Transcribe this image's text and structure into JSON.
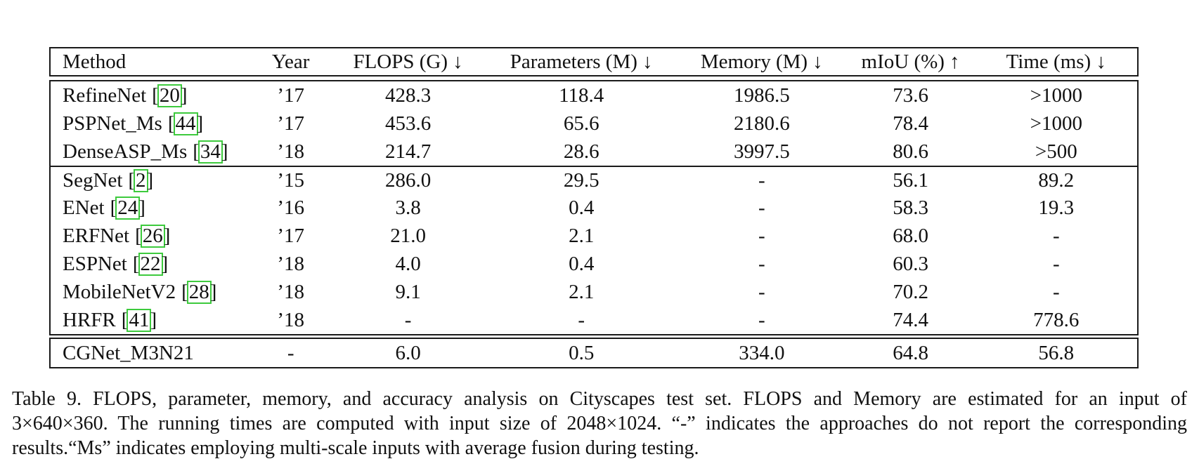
{
  "table": {
    "bracket_open": "[",
    "bracket_close": "]",
    "columns": [
      {
        "label": "Method"
      },
      {
        "label": "Year"
      },
      {
        "label": "FLOPS (G) ↓"
      },
      {
        "label": "Parameters (M) ↓"
      },
      {
        "label": "Memory (M) ↓"
      },
      {
        "label": "mIoU (%) ↑"
      },
      {
        "label": "Time (ms) ↓"
      }
    ],
    "rows": [
      {
        "method": "RefineNet",
        "cite": "20",
        "year": "’17",
        "flops": "428.3",
        "params": "118.4",
        "memory": "1986.5",
        "miou": "73.6",
        "time": ">1000"
      },
      {
        "method": "PSPNet_Ms",
        "cite": "44",
        "year": "’17",
        "flops": "453.6",
        "params": "65.6",
        "memory": "2180.6",
        "miou": "78.4",
        "time": ">1000"
      },
      {
        "method": "DenseASP_Ms",
        "cite": "34",
        "year": "’18",
        "flops": "214.7",
        "params": "28.6",
        "memory": "3997.5",
        "miou": "80.6",
        "time": ">500"
      },
      {
        "method": "SegNet",
        "cite": "2",
        "year": "’15",
        "flops": "286.0",
        "params": "29.5",
        "memory": "-",
        "miou": "56.1",
        "time": "89.2"
      },
      {
        "method": "ENet",
        "cite": "24",
        "year": "’16",
        "flops": "3.8",
        "params": "0.4",
        "memory": "-",
        "miou": "58.3",
        "time": "19.3"
      },
      {
        "method": "ERFNet",
        "cite": "26",
        "year": "’17",
        "flops": "21.0",
        "params": "2.1",
        "memory": "-",
        "miou": "68.0",
        "time": "-"
      },
      {
        "method": "ESPNet",
        "cite": "22",
        "year": "’18",
        "flops": "4.0",
        "params": "0.4",
        "memory": "-",
        "miou": "60.3",
        "time": "-"
      },
      {
        "method": "MobileNetV2",
        "cite": "28",
        "year": "’18",
        "flops": "9.1",
        "params": "2.1",
        "memory": "-",
        "miou": "70.2",
        "time": "-"
      },
      {
        "method": "HRFR",
        "cite": "41",
        "year": "’18",
        "flops": "-",
        "params": "-",
        "memory": "-",
        "miou": "74.4",
        "time": "778.6"
      },
      {
        "method": "CGNet_M3N21",
        "cite": "",
        "year": "-",
        "flops": "6.0",
        "params": "0.5",
        "memory": "334.0",
        "miou": "64.8",
        "time": "56.8"
      }
    ]
  },
  "caption": {
    "lines": [
      "Table 9. FLOPS, parameter, memory, and accuracy analysis on Cityscapes test set.  FLOPS and Memory are estimated for an input of",
      "3×640×360. The running times are computed with input size of 2048×1024. “-” indicates the approaches do not report the corresponding",
      "results.“Ms” indicates employing multi-scale inputs with average fusion during testing."
    ]
  },
  "colors": {
    "citation_box": "#3dca3d",
    "table_border": "#1a1a1a"
  }
}
